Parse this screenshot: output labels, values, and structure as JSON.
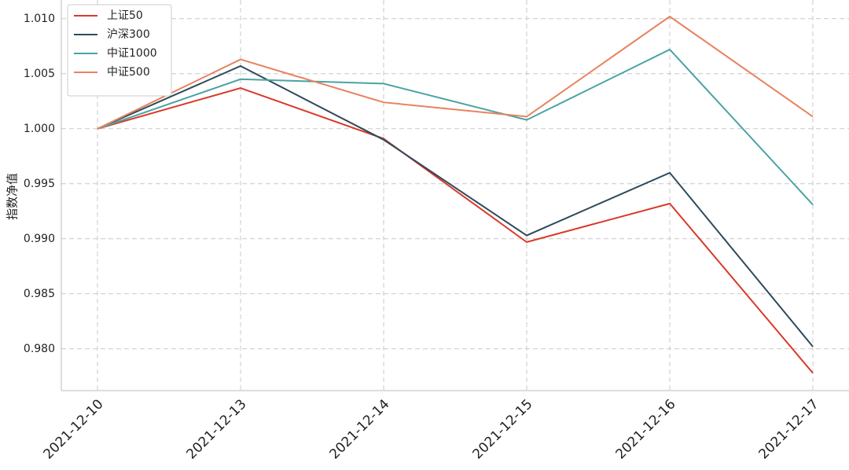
{
  "chart_data": {
    "type": "line",
    "y_label": "指数净值",
    "categories": [
      "2021-12-10",
      "2021-12-13",
      "2021-12-14",
      "2021-12-15",
      "2021-12-16",
      "2021-12-17"
    ],
    "series": [
      {
        "name": "上证50",
        "color": "#d93a2b",
        "values": [
          1.0,
          1.0037,
          0.9991,
          0.9897,
          0.9932,
          0.9778
        ]
      },
      {
        "name": "沪深300",
        "color": "#2e4a5a",
        "values": [
          1.0,
          1.0057,
          0.999,
          0.9903,
          0.996,
          0.9802
        ]
      },
      {
        "name": "中证1000",
        "color": "#4aa3a2",
        "values": [
          1.0,
          1.0045,
          1.0041,
          1.0008,
          1.0072,
          0.9931
        ]
      },
      {
        "name": "中证500",
        "color": "#e8825f",
        "values": [
          1.0,
          1.0063,
          1.0024,
          1.0011,
          1.0102,
          1.0011
        ]
      }
    ],
    "ylim": [
      0.9762,
      1.0117
    ],
    "yticks": [
      {
        "value": 0.98,
        "label": "0.980"
      },
      {
        "value": 0.985,
        "label": "0.985"
      },
      {
        "value": 0.99,
        "label": "0.990"
      },
      {
        "value": 0.995,
        "label": "0.995"
      },
      {
        "value": 1.0,
        "label": "1.000"
      },
      {
        "value": 1.005,
        "label": "1.005"
      },
      {
        "value": 1.01,
        "label": "1.010"
      }
    ],
    "grid": true,
    "legend": "upper-left"
  }
}
